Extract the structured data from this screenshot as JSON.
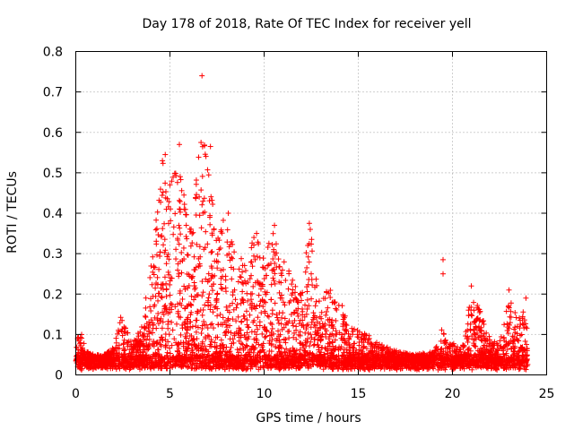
{
  "chart_data": {
    "type": "scatter",
    "title": "Day 178 of 2018, Rate Of TEC Index for receiver yell",
    "xlabel": "GPS time / hours",
    "ylabel": "ROTI / TECUs",
    "xlim": [
      0,
      25
    ],
    "ylim": [
      0,
      0.8
    ],
    "x_ticks": [
      0,
      5,
      10,
      15,
      20,
      25
    ],
    "x_tick_labels": [
      "0",
      "5",
      "10",
      "15",
      "20",
      "25"
    ],
    "y_ticks": [
      0,
      0.1,
      0.2,
      0.3,
      0.4,
      0.5,
      0.6,
      0.7,
      0.8
    ],
    "y_tick_labels": [
      "0",
      "0.1",
      "0.2",
      "0.3",
      "0.4",
      "0.5",
      "0.6",
      "0.7",
      "0.8"
    ],
    "grid": true,
    "marker": "+",
    "color": "#ff0000",
    "x_coverage_hours": [
      0,
      24
    ],
    "envelope": [
      {
        "x": 0.0,
        "y": 0.06
      },
      {
        "x": 0.25,
        "y": 0.14
      },
      {
        "x": 0.5,
        "y": 0.06
      },
      {
        "x": 1.0,
        "y": 0.05
      },
      {
        "x": 1.5,
        "y": 0.05
      },
      {
        "x": 2.0,
        "y": 0.07
      },
      {
        "x": 2.4,
        "y": 0.15
      },
      {
        "x": 3.0,
        "y": 0.08
      },
      {
        "x": 3.5,
        "y": 0.12
      },
      {
        "x": 4.0,
        "y": 0.28
      },
      {
        "x": 4.2,
        "y": 0.43
      },
      {
        "x": 4.6,
        "y": 0.53
      },
      {
        "x": 5.0,
        "y": 0.46
      },
      {
        "x": 5.5,
        "y": 0.57
      },
      {
        "x": 6.0,
        "y": 0.36
      },
      {
        "x": 6.3,
        "y": 0.44
      },
      {
        "x": 6.6,
        "y": 0.58
      },
      {
        "x": 7.0,
        "y": 0.58
      },
      {
        "x": 7.5,
        "y": 0.35
      },
      {
        "x": 8.0,
        "y": 0.4
      },
      {
        "x": 8.5,
        "y": 0.33
      },
      {
        "x": 9.0,
        "y": 0.27
      },
      {
        "x": 9.5,
        "y": 0.35
      },
      {
        "x": 10.0,
        "y": 0.3
      },
      {
        "x": 10.5,
        "y": 0.37
      },
      {
        "x": 11.0,
        "y": 0.3
      },
      {
        "x": 11.5,
        "y": 0.24
      },
      {
        "x": 12.0,
        "y": 0.21
      },
      {
        "x": 12.4,
        "y": 0.38
      },
      {
        "x": 13.0,
        "y": 0.17
      },
      {
        "x": 13.5,
        "y": 0.24
      },
      {
        "x": 14.0,
        "y": 0.2
      },
      {
        "x": 14.5,
        "y": 0.12
      },
      {
        "x": 15.0,
        "y": 0.11
      },
      {
        "x": 15.5,
        "y": 0.1
      },
      {
        "x": 16.0,
        "y": 0.08
      },
      {
        "x": 17.0,
        "y": 0.06
      },
      {
        "x": 18.0,
        "y": 0.05
      },
      {
        "x": 19.0,
        "y": 0.06
      },
      {
        "x": 19.5,
        "y": 0.12
      },
      {
        "x": 20.0,
        "y": 0.08
      },
      {
        "x": 20.5,
        "y": 0.07
      },
      {
        "x": 21.0,
        "y": 0.2
      },
      {
        "x": 21.5,
        "y": 0.16
      },
      {
        "x": 22.0,
        "y": 0.09
      },
      {
        "x": 22.5,
        "y": 0.08
      },
      {
        "x": 23.0,
        "y": 0.2
      },
      {
        "x": 23.5,
        "y": 0.14
      },
      {
        "x": 24.0,
        "y": 0.18
      }
    ],
    "outliers": [
      {
        "x": 6.7,
        "y": 0.74
      },
      {
        "x": 5.5,
        "y": 0.57
      },
      {
        "x": 6.65,
        "y": 0.575
      },
      {
        "x": 7.15,
        "y": 0.565
      },
      {
        "x": 4.75,
        "y": 0.545
      },
      {
        "x": 4.6,
        "y": 0.53
      },
      {
        "x": 5.0,
        "y": 0.47
      },
      {
        "x": 12.4,
        "y": 0.375
      },
      {
        "x": 12.45,
        "y": 0.36
      },
      {
        "x": 9.6,
        "y": 0.35
      },
      {
        "x": 8.1,
        "y": 0.4
      },
      {
        "x": 10.55,
        "y": 0.37
      },
      {
        "x": 19.5,
        "y": 0.285
      },
      {
        "x": 19.5,
        "y": 0.25
      },
      {
        "x": 21.0,
        "y": 0.22
      },
      {
        "x": 23.0,
        "y": 0.21
      },
      {
        "x": 23.9,
        "y": 0.19
      },
      {
        "x": 12.5,
        "y": 0.25
      }
    ]
  }
}
